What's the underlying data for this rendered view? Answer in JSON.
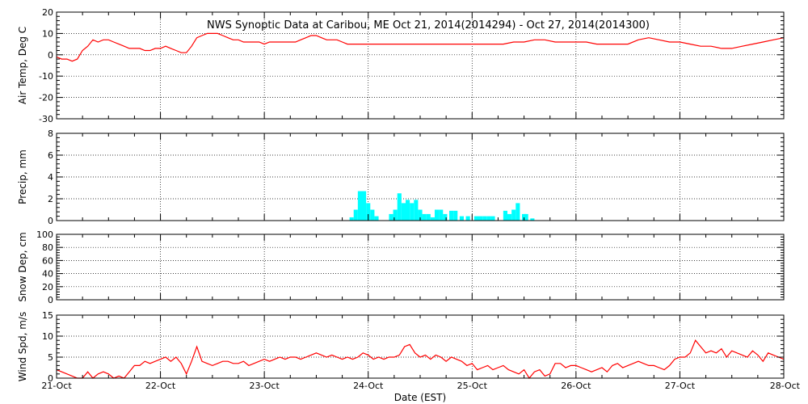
{
  "title": "NWS Synoptic Data at Caribou, ME   Oct 21, 2014(2014294) - Oct 27, 2014(2014300)",
  "xlabel": "Date (EST)",
  "x_ticks": [
    "21-Oct",
    "22-Oct",
    "23-Oct",
    "24-Oct",
    "25-Oct",
    "26-Oct",
    "27-Oct",
    "28-Oct"
  ],
  "colors": {
    "line": "#ff0000",
    "bar": "#00ffff",
    "axis": "#000000"
  },
  "chart_data": [
    {
      "type": "line",
      "ylabel": "Air Temp, Deg C",
      "x_unit": "days since 21-Oct 00:00 EST",
      "ylim": [
        -30,
        20
      ],
      "yticks": [
        -30,
        -20,
        -10,
        0,
        10,
        20
      ],
      "grid": true,
      "x": [
        0,
        0.05,
        0.1,
        0.15,
        0.2,
        0.25,
        0.3,
        0.35,
        0.4,
        0.45,
        0.5,
        0.55,
        0.6,
        0.65,
        0.7,
        0.75,
        0.8,
        0.85,
        0.9,
        0.95,
        1.0,
        1.05,
        1.1,
        1.15,
        1.2,
        1.25,
        1.3,
        1.35,
        1.4,
        1.45,
        1.5,
        1.55,
        1.6,
        1.65,
        1.7,
        1.75,
        1.8,
        1.85,
        1.9,
        1.95,
        2.0,
        2.05,
        2.1,
        2.15,
        2.2,
        2.25,
        2.3,
        2.35,
        2.4,
        2.45,
        2.5,
        2.55,
        2.6,
        2.65,
        2.7,
        2.75,
        2.8,
        2.85,
        2.9,
        2.95,
        3.0,
        3.1,
        3.2,
        3.3,
        3.4,
        3.5,
        3.6,
        3.7,
        3.8,
        3.9,
        4.0,
        4.1,
        4.2,
        4.3,
        4.4,
        4.5,
        4.6,
        4.7,
        4.8,
        4.9,
        5.0,
        5.1,
        5.2,
        5.3,
        5.4,
        5.5,
        5.6,
        5.7,
        5.8,
        5.9,
        6.0,
        6.1,
        6.2,
        6.3,
        6.4,
        6.5,
        6.6,
        6.7,
        6.8,
        6.9,
        7.0
      ],
      "values": [
        -1,
        -2,
        -2,
        -3,
        -2,
        2,
        4,
        7,
        6,
        7,
        7,
        6,
        5,
        4,
        3,
        3,
        3,
        2,
        2,
        3,
        3,
        4,
        3,
        2,
        1,
        1,
        4,
        8,
        9,
        10,
        10,
        10,
        9,
        8,
        7,
        7,
        6,
        6,
        6,
        6,
        5,
        6,
        6,
        6,
        6,
        6,
        6,
        7,
        8,
        9,
        9,
        8,
        7,
        7,
        7,
        6,
        5,
        5,
        5,
        5,
        5,
        5,
        5,
        5,
        5,
        5,
        5,
        5,
        5,
        5,
        5,
        5,
        5,
        5,
        6,
        6,
        7,
        7,
        6,
        6,
        6,
        6,
        5,
        5,
        5,
        5,
        7,
        8,
        7,
        6,
        6,
        5,
        4,
        4,
        3,
        3,
        4,
        5,
        6,
        7,
        8
      ],
      "series": [
        {
          "name": "Air Temp"
        }
      ]
    },
    {
      "type": "bar",
      "ylabel": "Precip, mm",
      "x_unit": "days since 21-Oct 00:00 EST",
      "ylim": [
        0,
        8
      ],
      "yticks": [
        0,
        2,
        4,
        6,
        8
      ],
      "grid": true,
      "bar_width": 0.04,
      "x": [
        2.84,
        2.88,
        2.92,
        2.96,
        3.0,
        3.04,
        3.08,
        3.22,
        3.26,
        3.3,
        3.34,
        3.38,
        3.42,
        3.46,
        3.5,
        3.54,
        3.58,
        3.62,
        3.66,
        3.7,
        3.74,
        3.8,
        3.84,
        3.9,
        3.96,
        4.04,
        4.08,
        4.12,
        4.16,
        4.2,
        4.32,
        4.36,
        4.4,
        4.44,
        4.5,
        4.52,
        4.58
      ],
      "values": [
        0.3,
        1.0,
        2.7,
        2.7,
        1.6,
        1.0,
        0.4,
        0.6,
        1.0,
        2.5,
        1.6,
        1.9,
        1.6,
        1.9,
        1.0,
        0.6,
        0.6,
        0.3,
        1.0,
        1.0,
        0.6,
        0.9,
        0.9,
        0.4,
        0.4,
        0.4,
        0.4,
        0.4,
        0.4,
        0.4,
        0.9,
        0.6,
        1.0,
        1.6,
        0.6,
        0.6,
        0.2
      ],
      "series": [
        {
          "name": "Precip"
        }
      ]
    },
    {
      "type": "line",
      "ylabel": "Snow Dep, cm",
      "ylim": [
        0,
        100
      ],
      "yticks": [
        0,
        20,
        40,
        60,
        80,
        100
      ],
      "grid": true,
      "x": [],
      "values": []
    },
    {
      "type": "line",
      "ylabel": "Wind Spd, m/s",
      "x_unit": "days since 21-Oct 00:00 EST",
      "ylim": [
        0,
        15
      ],
      "yticks": [
        0,
        5,
        10,
        15
      ],
      "grid": true,
      "x": [
        0,
        0.05,
        0.1,
        0.15,
        0.2,
        0.25,
        0.3,
        0.35,
        0.4,
        0.45,
        0.5,
        0.55,
        0.6,
        0.65,
        0.7,
        0.75,
        0.8,
        0.85,
        0.9,
        0.95,
        1.0,
        1.05,
        1.1,
        1.15,
        1.2,
        1.25,
        1.3,
        1.35,
        1.4,
        1.45,
        1.5,
        1.55,
        1.6,
        1.65,
        1.7,
        1.75,
        1.8,
        1.85,
        1.9,
        1.95,
        2.0,
        2.05,
        2.1,
        2.15,
        2.2,
        2.25,
        2.3,
        2.35,
        2.4,
        2.45,
        2.5,
        2.55,
        2.6,
        2.65,
        2.7,
        2.75,
        2.8,
        2.85,
        2.9,
        2.95,
        3.0,
        3.05,
        3.1,
        3.15,
        3.2,
        3.25,
        3.3,
        3.35,
        3.4,
        3.45,
        3.5,
        3.55,
        3.6,
        3.65,
        3.7,
        3.75,
        3.8,
        3.85,
        3.9,
        3.95,
        4.0,
        4.05,
        4.1,
        4.15,
        4.2,
        4.25,
        4.3,
        4.35,
        4.4,
        4.45,
        4.5,
        4.55,
        4.6,
        4.65,
        4.7,
        4.75,
        4.8,
        4.85,
        4.9,
        4.95,
        5.0,
        5.05,
        5.1,
        5.15,
        5.2,
        5.25,
        5.3,
        5.35,
        5.4,
        5.45,
        5.5,
        5.55,
        5.6,
        5.65,
        5.7,
        5.75,
        5.8,
        5.85,
        5.9,
        5.95,
        6.0,
        6.05,
        6.1,
        6.15,
        6.2,
        6.25,
        6.3,
        6.35,
        6.4,
        6.45,
        6.5,
        6.55,
        6.6,
        6.65,
        6.7,
        6.75,
        6.8,
        6.85,
        6.9,
        6.95,
        7.0
      ],
      "values": [
        2,
        1.5,
        1,
        0.5,
        0,
        0,
        1.5,
        0,
        1,
        1.5,
        1,
        0,
        0.5,
        0,
        1.5,
        3,
        3,
        4,
        3.5,
        4,
        4.5,
        5,
        4,
        5,
        3.5,
        1,
        4,
        7.5,
        4,
        3.5,
        3,
        3.5,
        4,
        4,
        3.5,
        3.5,
        4,
        3,
        3.5,
        4,
        4.5,
        4,
        4.5,
        5,
        4.5,
        5,
        5,
        4.5,
        5,
        5.5,
        6,
        5.5,
        5,
        5.5,
        5,
        4.5,
        5,
        4.5,
        5,
        6,
        5.5,
        4.5,
        5,
        4.5,
        5,
        5,
        5.5,
        7.5,
        8,
        6,
        5,
        5.5,
        4.5,
        5.5,
        5,
        4,
        5,
        4.5,
        4,
        3,
        3.5,
        2,
        2.5,
        3,
        2,
        2.5,
        3,
        2,
        1.5,
        1,
        2,
        0,
        1.5,
        2,
        0.5,
        1,
        3.5,
        3.5,
        2.5,
        3,
        3,
        2.5,
        2,
        1.5,
        2,
        2.5,
        1.5,
        3,
        3.5,
        2.5,
        3,
        3.5,
        4,
        3.5,
        3,
        3,
        2.5,
        2,
        3,
        4.5,
        5,
        5,
        6,
        9,
        7.5,
        6,
        6.5,
        6,
        7,
        5,
        6.5,
        6,
        5.5,
        5,
        6.5,
        5.5,
        4,
        6,
        5.5,
        5,
        4.5
      ],
      "series": [
        {
          "name": "Wind Spd"
        }
      ]
    }
  ]
}
